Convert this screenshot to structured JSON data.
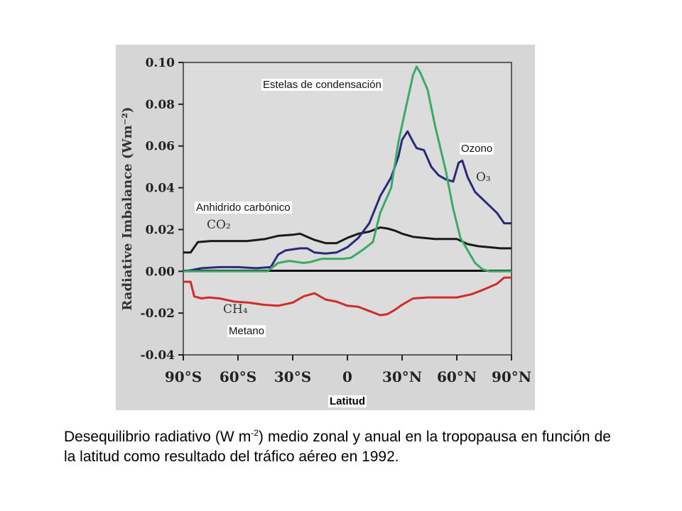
{
  "chart_data": {
    "type": "line",
    "ylabel": "Radiative Imbalance (Wm⁻²)",
    "xlabel": "Latitud",
    "xlim": [
      -90,
      90
    ],
    "ylim": [
      -0.04,
      0.1
    ],
    "yticks": [
      "0.10",
      "0.08",
      "0.06",
      "0.04",
      "0.02",
      "0.00",
      "-0.02",
      "-0.04"
    ],
    "ytick_values": [
      0.1,
      0.08,
      0.06,
      0.04,
      0.02,
      0.0,
      -0.02,
      -0.04
    ],
    "xticks": [
      "90°S",
      "60°S",
      "30°S",
      "0",
      "30°N",
      "60°N",
      "90°N"
    ],
    "xtick_values": [
      -90,
      -60,
      -30,
      0,
      30,
      60,
      90
    ],
    "grid": false,
    "series": [
      {
        "name": "CO2",
        "color": "#1a1a1a",
        "x": [
          -90,
          -86,
          -82,
          -75,
          -65,
          -55,
          -45,
          -38,
          -30,
          -26,
          -22,
          -18,
          -12,
          -6,
          0,
          6,
          12,
          18,
          22,
          26,
          30,
          36,
          42,
          48,
          54,
          60,
          66,
          72,
          78,
          84,
          90
        ],
        "y": [
          0.009,
          0.009,
          0.014,
          0.0145,
          0.0145,
          0.0145,
          0.0155,
          0.017,
          0.0175,
          0.018,
          0.0165,
          0.015,
          0.0135,
          0.0135,
          0.016,
          0.018,
          0.019,
          0.021,
          0.0205,
          0.0195,
          0.018,
          0.0165,
          0.016,
          0.0155,
          0.0155,
          0.0155,
          0.013,
          0.012,
          0.0115,
          0.011,
          0.011
        ]
      },
      {
        "name": "O3",
        "color": "#2b2a7a",
        "x": [
          -90,
          -86,
          -80,
          -70,
          -60,
          -50,
          -42,
          -38,
          -34,
          -30,
          -26,
          -22,
          -18,
          -12,
          -6,
          0,
          6,
          12,
          18,
          24,
          28,
          30,
          33,
          36,
          38,
          42,
          46,
          50,
          54,
          58,
          61,
          63,
          66,
          70,
          76,
          82,
          86,
          90
        ],
        "y": [
          0.0,
          0.0005,
          0.0015,
          0.002,
          0.002,
          0.0015,
          0.002,
          0.008,
          0.01,
          0.0105,
          0.011,
          0.011,
          0.009,
          0.0085,
          0.009,
          0.0115,
          0.016,
          0.023,
          0.036,
          0.045,
          0.055,
          0.063,
          0.067,
          0.062,
          0.059,
          0.058,
          0.05,
          0.046,
          0.044,
          0.043,
          0.052,
          0.053,
          0.045,
          0.038,
          0.033,
          0.028,
          0.023,
          0.023
        ]
      },
      {
        "name": "Contrails",
        "color": "#3aaa64",
        "x": [
          -90,
          -60,
          -44,
          -38,
          -32,
          -28,
          -24,
          -20,
          -14,
          -8,
          -2,
          2,
          8,
          14,
          18,
          24,
          28,
          32,
          36,
          38,
          40,
          44,
          48,
          54,
          58,
          62,
          66,
          70,
          74,
          78,
          90
        ],
        "y": [
          0.0,
          0.0,
          0.0,
          0.004,
          0.005,
          0.0045,
          0.004,
          0.0045,
          0.006,
          0.006,
          0.006,
          0.0065,
          0.01,
          0.014,
          0.028,
          0.04,
          0.062,
          0.078,
          0.094,
          0.098,
          0.095,
          0.087,
          0.07,
          0.048,
          0.03,
          0.016,
          0.01,
          0.004,
          0.001,
          0.0,
          0.0
        ]
      },
      {
        "name": "CH4",
        "color": "#d42a2a",
        "x": [
          -90,
          -86,
          -84,
          -80,
          -76,
          -70,
          -62,
          -54,
          -46,
          -38,
          -30,
          -24,
          -18,
          -12,
          -6,
          0,
          6,
          12,
          18,
          22,
          26,
          30,
          36,
          44,
          52,
          60,
          68,
          74,
          78,
          82,
          86,
          90
        ],
        "y": [
          -0.005,
          -0.005,
          -0.012,
          -0.013,
          -0.0125,
          -0.013,
          -0.0145,
          -0.015,
          -0.016,
          -0.0165,
          -0.015,
          -0.012,
          -0.0105,
          -0.0135,
          -0.0145,
          -0.0165,
          -0.017,
          -0.019,
          -0.021,
          -0.0205,
          -0.0185,
          -0.016,
          -0.013,
          -0.0125,
          -0.0125,
          -0.0125,
          -0.011,
          -0.009,
          -0.0075,
          -0.006,
          -0.003,
          -0.003
        ]
      }
    ]
  },
  "labels": {
    "co2_inline": "CO₂",
    "o3_inline": "O₃",
    "ch4_inline": "CH₄",
    "contrails": "Estelas de condensación",
    "ozone": "Ozono",
    "co2": "Anhidrido carbónico",
    "methane": "Metano"
  },
  "caption": {
    "before": "Desequilibrio radiativo (W m",
    "sup": "-2",
    "after": ") medio zonal y anual  en la tropopausa en función de la latitud como resultado del tráfico aéreo en 1992."
  },
  "colors": {
    "scan_background": "#d6d6d6",
    "plot_background": "#dcdcdc"
  }
}
